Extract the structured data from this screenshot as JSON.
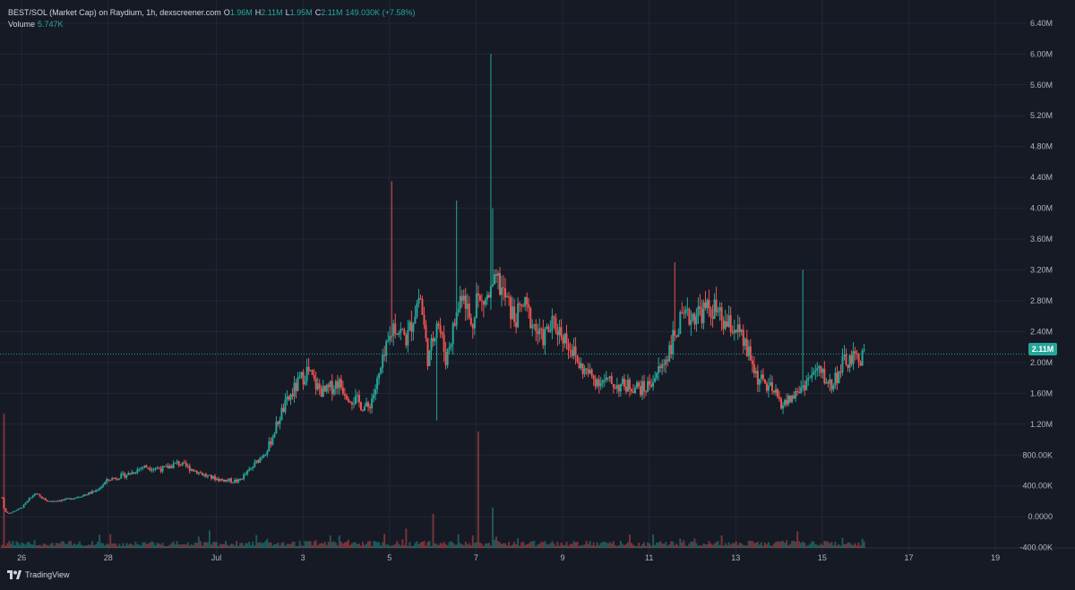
{
  "legend": {
    "symbol": "BEST/SOL (Market Cap) on Raydium, 1h, dexscreener.com",
    "o_label": "O",
    "o_value": "1.96M",
    "h_label": "H",
    "h_value": "2.11M",
    "l_label": "L",
    "l_value": "1.95M",
    "c_label": "C",
    "c_value": "2.11M",
    "change": "149.030K (+7.58%)",
    "volume_label": "Volume",
    "volume_value": "5.747K"
  },
  "price_tag": "2.11M",
  "brand": "TradingView",
  "colors": {
    "up": "#26a69a",
    "down": "#ef5350",
    "background": "#161a25",
    "grid": "#232734",
    "text": "#b2b5be"
  },
  "chart_data": {
    "type": "candlestick",
    "title": "BEST/SOL (Market Cap) on Raydium, 1h, dexscreener.com",
    "y_tick_labels": [
      "-400.00K",
      "0.0000",
      "400.00K",
      "800.00K",
      "1.20M",
      "1.60M",
      "2.00M",
      "2.40M",
      "2.80M",
      "3.20M",
      "3.60M",
      "4.00M",
      "4.40M",
      "4.80M",
      "5.20M",
      "5.60M",
      "6.00M",
      "6.40M"
    ],
    "y_tick_values": [
      -400000,
      0,
      400000,
      800000,
      1200000,
      1600000,
      2000000,
      2400000,
      2800000,
      3200000,
      3600000,
      4000000,
      4400000,
      4800000,
      5200000,
      5600000,
      6000000,
      6400000
    ],
    "x_tick_labels": [
      "26",
      "28",
      "Jul",
      "3",
      "5",
      "7",
      "9",
      "11",
      "13",
      "15",
      "17",
      "19"
    ],
    "x_tick_values": [
      0,
      2,
      4.5,
      6.5,
      8.5,
      10.5,
      12.5,
      14.5,
      16.5,
      18.5,
      20.5,
      22.5
    ],
    "x_range_days": [
      -0.5,
      23.2
    ],
    "ylim": [
      -520000,
      6700000
    ],
    "last_close": 2110000,
    "grid": true,
    "series_anchor_points": {
      "x_days": [
        -0.45,
        -0.4,
        -0.3,
        0,
        0.3,
        0.6,
        1,
        1.3,
        1.7,
        2,
        2.5,
        2.8,
        3.3,
        3.6,
        4,
        4.3,
        4.6,
        5,
        5.3,
        5.7,
        6,
        6.3,
        6.6,
        6.8,
        7,
        7.3,
        7.6,
        8,
        8.2,
        8.4,
        8.6,
        8.9,
        9.2,
        9.4,
        9.6,
        9.8,
        10,
        10.2,
        10.4,
        10.5,
        10.6,
        10.8,
        11,
        11.2,
        11.4,
        11.6,
        12,
        12.3,
        12.6,
        12.9,
        13.2,
        13.5,
        13.8,
        14.1,
        14.4,
        14.8,
        15.2,
        15.6,
        16,
        16.2,
        16.5,
        16.8,
        17,
        17.3,
        17.6,
        17.9,
        18.2,
        18.4,
        18.7,
        19,
        19.3,
        19.5
      ],
      "close": [
        250000,
        80000,
        40000,
        120000,
        300000,
        200000,
        220000,
        260000,
        330000,
        480000,
        560000,
        650000,
        620000,
        700000,
        600000,
        520000,
        480000,
        460000,
        620000,
        900000,
        1350000,
        1650000,
        1900000,
        1700000,
        1600000,
        1750000,
        1550000,
        1400000,
        1700000,
        2100000,
        2500000,
        2300000,
        2900000,
        2000000,
        2600000,
        2050000,
        2500000,
        3000000,
        2400000,
        2900000,
        2750000,
        2850000,
        3050000,
        2800000,
        2550000,
        2750000,
        2300000,
        2500000,
        2300000,
        1950000,
        1800000,
        1750000,
        1700000,
        1700000,
        1650000,
        1950000,
        2500000,
        2650000,
        2700000,
        2500000,
        2450000,
        2100000,
        1800000,
        1650000,
        1450000,
        1600000,
        1800000,
        1900000,
        1700000,
        2000000,
        2050000,
        2110000
      ]
    },
    "volume_axis_note": "Volume bars shown at bottom"
  }
}
